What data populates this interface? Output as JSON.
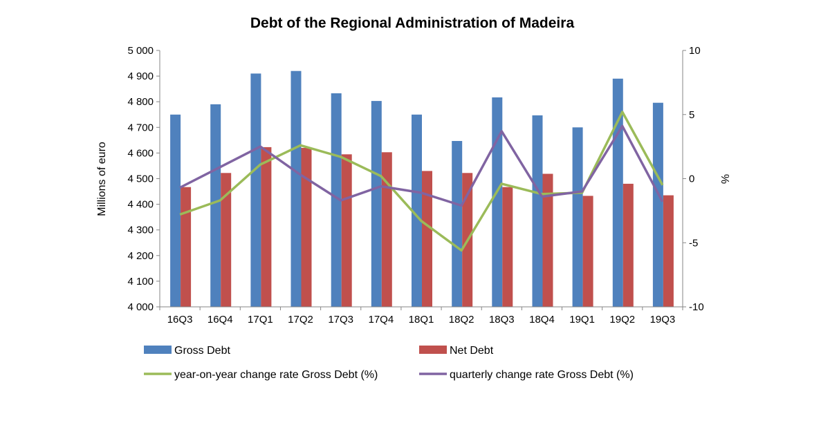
{
  "chart_data": {
    "type": "bar",
    "title": "Debt of the Regional Administration of Madeira",
    "categories": [
      "16Q3",
      "16Q4",
      "17Q1",
      "17Q2",
      "17Q3",
      "17Q4",
      "18Q1",
      "18Q2",
      "18Q3",
      "18Q4",
      "19Q1",
      "19Q2",
      "19Q3"
    ],
    "ylabel": "Millions of euro",
    "y2label": "%",
    "ylim": [
      4000,
      5000
    ],
    "y2lim": [
      -10,
      10
    ],
    "yticks": [
      "4 000",
      "4 100",
      "4 200",
      "4 300",
      "4 400",
      "4 500",
      "4 600",
      "4 700",
      "4 800",
      "4 900",
      "5 000"
    ],
    "y2ticks": [
      "-10",
      "-5",
      "0",
      "5",
      "10"
    ],
    "grid": false,
    "legend_position": "bottom",
    "series": [
      {
        "name": "Gross Debt",
        "type": "bar",
        "axis": "left",
        "color": "#4F81BD",
        "values": [
          4750,
          4790,
          4910,
          4920,
          4833,
          4803,
          4750,
          4647,
          4817,
          4747,
          4700,
          4890,
          4796
        ]
      },
      {
        "name": "Net Debt",
        "type": "bar",
        "axis": "left",
        "color": "#C0504D",
        "values": [
          4467,
          4522,
          4623,
          4620,
          4595,
          4603,
          4530,
          4522,
          4467,
          4519,
          4433,
          4480,
          4435
        ]
      },
      {
        "name": "year-on-year change rate Gross Debt (%)",
        "type": "line",
        "axis": "right",
        "color": "#9BBB59",
        "values": [
          -2.8,
          -1.7,
          1.1,
          2.6,
          1.7,
          0.2,
          -3.3,
          -5.6,
          -0.4,
          -1.2,
          -1.1,
          5.2,
          -0.5
        ]
      },
      {
        "name": "quarterly change rate Gross Debt (%)",
        "type": "line",
        "axis": "right",
        "color": "#8064A2",
        "values": [
          -0.7,
          0.9,
          2.5,
          0.3,
          -1.7,
          -0.6,
          -1.1,
          -2.1,
          3.7,
          -1.4,
          -1.0,
          4.1,
          -1.8
        ]
      }
    ]
  }
}
